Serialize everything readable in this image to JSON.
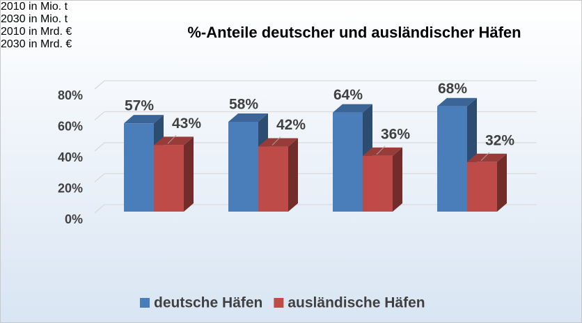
{
  "chart_data": {
    "type": "bar3d",
    "title": "%-Anteile deutscher und ausländischer Häfen",
    "categories": [
      "2010 in Mio. t",
      "2030 in Mio. t",
      "2010 in Mrd. €",
      "2030 in Mrd. €"
    ],
    "series": [
      {
        "name": "deutsche Häfen",
        "color": "#4a7ebb",
        "values": [
          57,
          58,
          64,
          68
        ],
        "value_labels": [
          "57%",
          "58%",
          "64%",
          "68%"
        ]
      },
      {
        "name": "ausländische Häfen",
        "color": "#be4b48",
        "values": [
          43,
          42,
          36,
          32
        ],
        "value_labels": [
          "43%",
          "42%",
          "36%",
          "32%"
        ]
      }
    ],
    "ylim": [
      0,
      80
    ],
    "yticks": [
      {
        "value": 0,
        "label": "0%"
      },
      {
        "value": 20,
        "label": "20%"
      },
      {
        "value": 40,
        "label": "40%"
      },
      {
        "value": 60,
        "label": "60%"
      },
      {
        "value": 80,
        "label": "80%"
      }
    ],
    "grid": true,
    "legend": "bottom"
  }
}
